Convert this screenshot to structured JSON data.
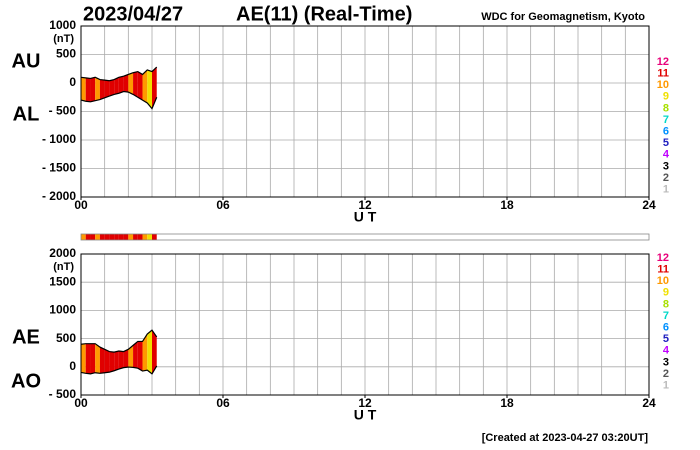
{
  "header": {
    "date": "2023/04/27",
    "title": "AE(11) (Real-Time)",
    "source": "WDC for Geomagnetism, Kyoto"
  },
  "footer": "[Created at 2023-04-27 03:20UT]",
  "chart_data": [
    {
      "type": "line",
      "ylabel": "(nT)",
      "xlabel": "U T",
      "grid": true,
      "xlim": [
        0,
        24
      ],
      "xticks": [
        {
          "value": 0,
          "label": "00"
        },
        {
          "value": 6,
          "label": "06"
        },
        12,
        18,
        24
      ],
      "ylim": [
        -2000,
        1000
      ],
      "yticks": [
        1000,
        500,
        0,
        {
          "value": -500,
          "label": "- 500"
        },
        {
          "value": -1000,
          "label": "- 1000"
        },
        {
          "value": -1500,
          "label": "- 1500"
        },
        {
          "value": -2000,
          "label": "- 2000"
        }
      ],
      "x": [
        0,
        0.2,
        0.4,
        0.6,
        0.8,
        1.0,
        1.2,
        1.4,
        1.6,
        1.8,
        2.0,
        2.2,
        2.4,
        2.6,
        2.8,
        3.0,
        3.2
      ],
      "series": [
        {
          "name": "AU",
          "color": "#000000",
          "values": [
            100,
            90,
            80,
            100,
            60,
            50,
            40,
            60,
            100,
            120,
            150,
            180,
            200,
            150,
            230,
            200,
            280
          ]
        },
        {
          "name": "AL",
          "color": "#000000",
          "values": [
            -300,
            -320,
            -330,
            -310,
            -290,
            -260,
            -230,
            -200,
            -180,
            -150,
            -160,
            -200,
            -250,
            -300,
            -350,
            -450,
            -250
          ]
        }
      ],
      "stations": [
        10,
        11,
        11,
        10,
        11,
        11,
        11,
        11,
        11,
        11,
        10,
        11,
        11,
        10,
        9,
        11
      ],
      "levels": [
        12,
        11,
        10,
        9,
        8,
        7,
        6,
        5,
        4,
        3,
        2,
        1
      ],
      "level_colors": [
        "#e8007a",
        "#e00000",
        "#ff9900",
        "#f0e000",
        "#a8e000",
        "#00d8c8",
        "#0090ff",
        "#2020c0",
        "#c000ff",
        "#000000",
        "#555555",
        "#bbbbbb"
      ]
    },
    {
      "type": "line",
      "ylabel": "(nT)",
      "xlabel": "U T",
      "grid": true,
      "xlim": [
        0,
        24
      ],
      "xticks": [
        {
          "value": 0,
          "label": "00"
        },
        {
          "value": 6,
          "label": "06"
        },
        12,
        18,
        24
      ],
      "ylim": [
        -500,
        2000
      ],
      "yticks": [
        2000,
        1500,
        1000,
        500,
        0,
        {
          "value": -500,
          "label": "- 500"
        }
      ],
      "x": [
        0,
        0.2,
        0.4,
        0.6,
        0.8,
        1.0,
        1.2,
        1.4,
        1.6,
        1.8,
        2.0,
        2.2,
        2.4,
        2.6,
        2.8,
        3.0,
        3.2
      ],
      "series": [
        {
          "name": "AE",
          "color": "#000000",
          "values": [
            400,
            410,
            410,
            410,
            350,
            310,
            270,
            260,
            280,
            270,
            310,
            380,
            450,
            450,
            580,
            650,
            530
          ]
        },
        {
          "name": "AO",
          "color": "#000000",
          "values": [
            -100,
            -115,
            -125,
            -105,
            -115,
            -105,
            -95,
            -70,
            -40,
            -15,
            -5,
            -10,
            -25,
            -75,
            -60,
            -125,
            15
          ]
        }
      ],
      "stations": [
        10,
        11,
        11,
        10,
        11,
        11,
        11,
        11,
        11,
        11,
        10,
        11,
        11,
        10,
        9,
        11
      ],
      "levels": [
        12,
        11,
        10,
        9,
        8,
        7,
        6,
        5,
        4,
        3,
        2,
        1
      ],
      "level_colors": [
        "#e8007a",
        "#e00000",
        "#ff9900",
        "#f0e000",
        "#a8e000",
        "#00d8c8",
        "#0090ff",
        "#2020c0",
        "#c000ff",
        "#000000",
        "#555555",
        "#bbbbbb"
      ]
    }
  ]
}
